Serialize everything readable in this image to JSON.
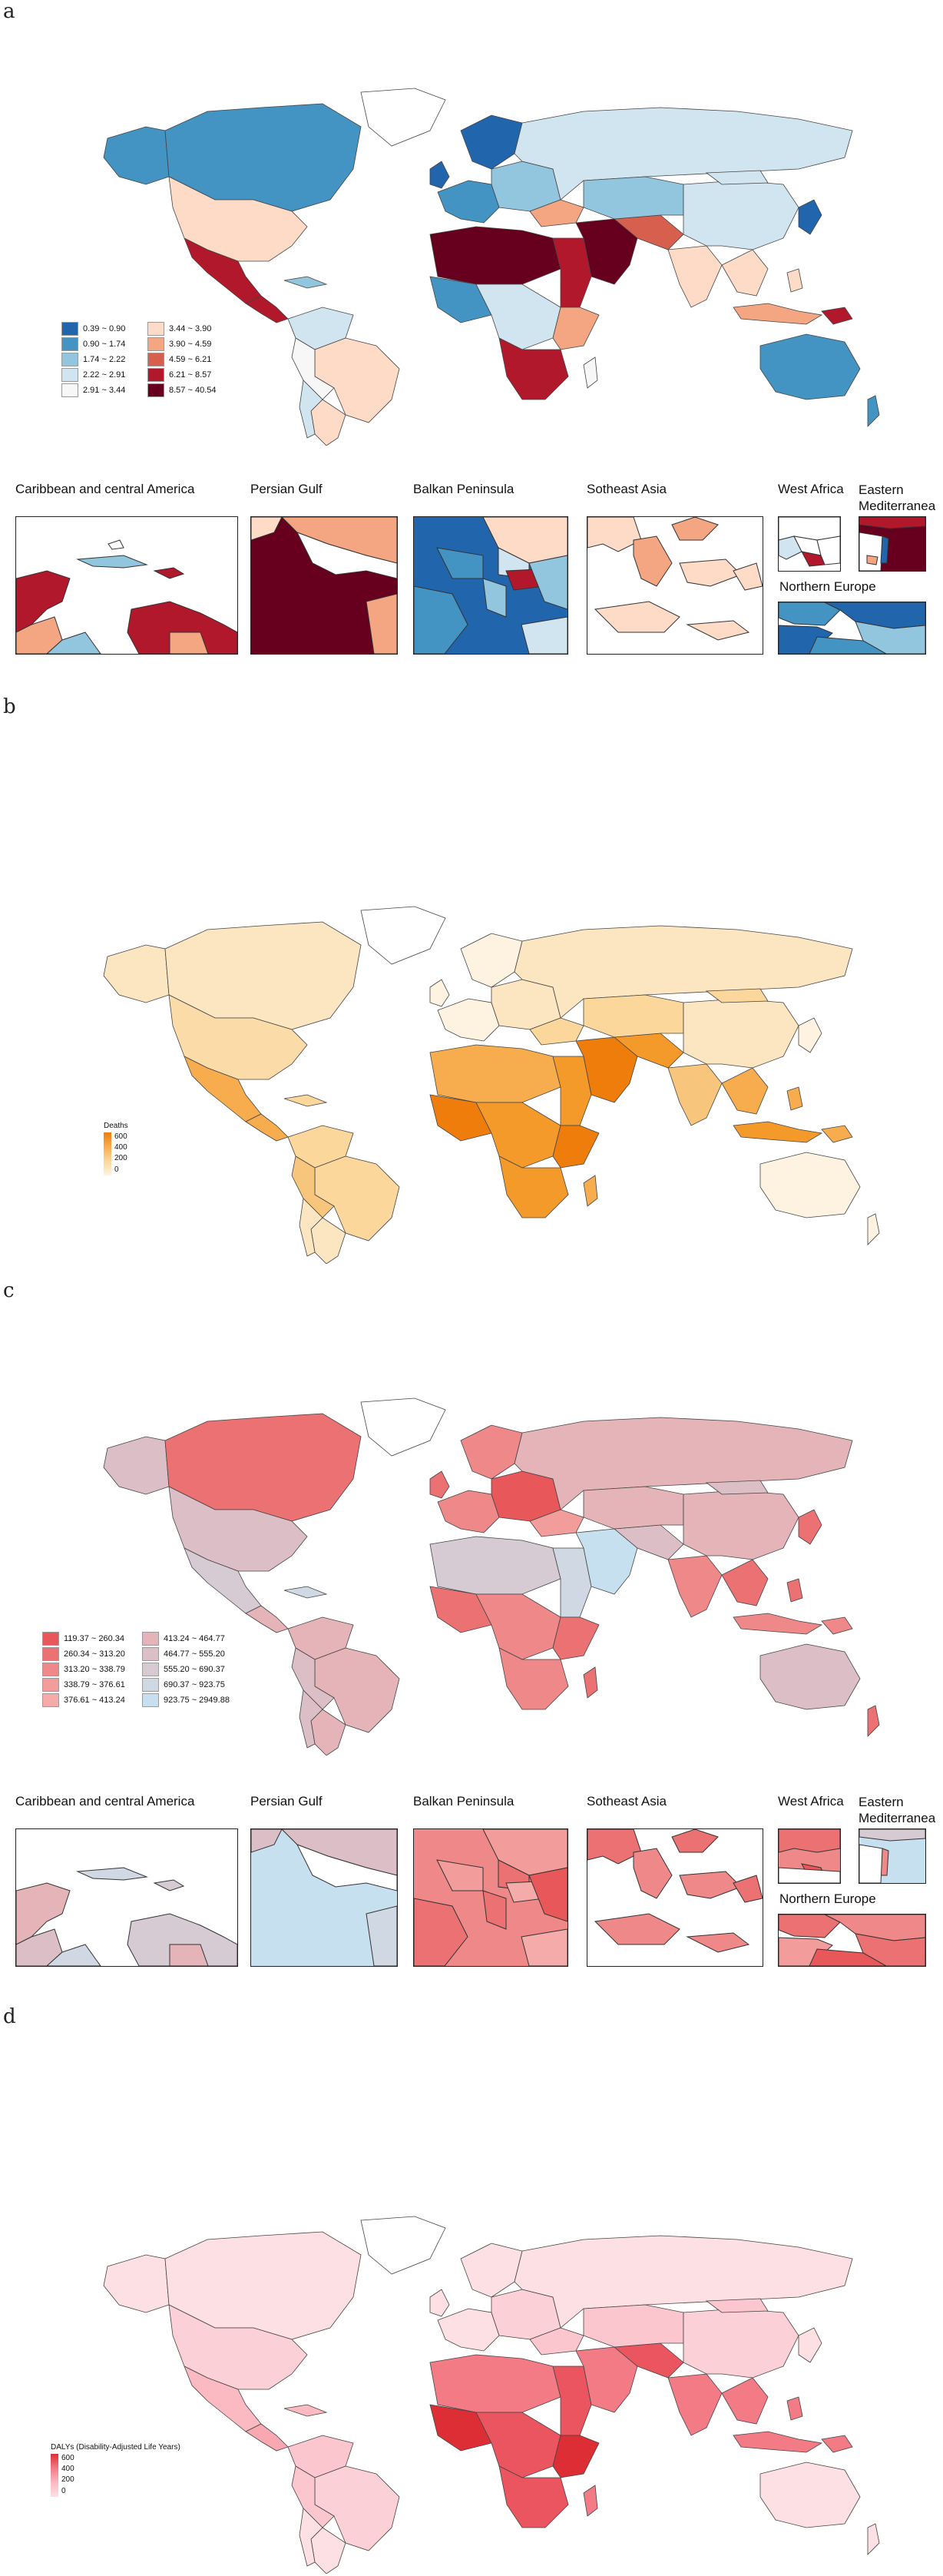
{
  "panels": [
    {
      "letter": "a",
      "legend": [
        "0.39 ~ 0.90",
        "0.90 ~ 1.74",
        "1.74 ~ 2.22",
        "2.22 ~ 2.91",
        "2.91 ~ 3.44",
        "3.44 ~ 3.90",
        "3.90 ~ 4.59",
        "4.59 ~ 6.21",
        "6.21 ~ 8.57",
        "8.57 ~ 40.54"
      ]
    },
    {
      "letter": "b",
      "legend_title": "Deaths",
      "ticks": [
        "600",
        "400",
        "200",
        "0"
      ]
    },
    {
      "letter": "c",
      "legend": [
        "119.37 ~ 260.34",
        "260.34 ~ 313.20",
        "313.20 ~ 338.79",
        "338.79 ~ 376.61",
        "376.61 ~ 413.24",
        "413.24 ~ 464.77",
        "464.77 ~ 555.20",
        "555.20 ~ 690.37",
        "690.37 ~ 923.75",
        "923.75 ~ 2949.88"
      ]
    },
    {
      "letter": "d",
      "legend_title": "DALYs (Disability-Adjusted Life Years)",
      "ticks": [
        "600",
        "400",
        "200",
        "0"
      ]
    }
  ],
  "insets": {
    "caribbean": "Caribbean and central America",
    "persian_gulf": "Persian Gulf",
    "balkan": "Balkan Peninsula",
    "se_asia": "Sotheast Asia",
    "west_africa": "West Africa",
    "east_med": "Eastern Mediterranea",
    "northern_europe": "Northern Europe"
  },
  "colors": {
    "a": [
      "#2166ac",
      "#4393c3",
      "#92c5de",
      "#d1e5f0",
      "#f7f7f7",
      "#fddbc7",
      "#f4a582",
      "#d6604d",
      "#b2182b",
      "#67001f"
    ],
    "b": [
      "#fef3e0",
      "#fbd79b",
      "#f7ad4e",
      "#ee7d0c"
    ],
    "c": [
      "#e8575a",
      "#eb7173",
      "#ef8889",
      "#f29c9b",
      "#f4abaa",
      "#e4b4b8",
      "#dcbfc6",
      "#d6cad3",
      "#cfd8e3",
      "#c7e0ef"
    ],
    "d": [
      "#fde0e4",
      "#fbb9c2",
      "#f27b86",
      "#dd2d35"
    ]
  }
}
